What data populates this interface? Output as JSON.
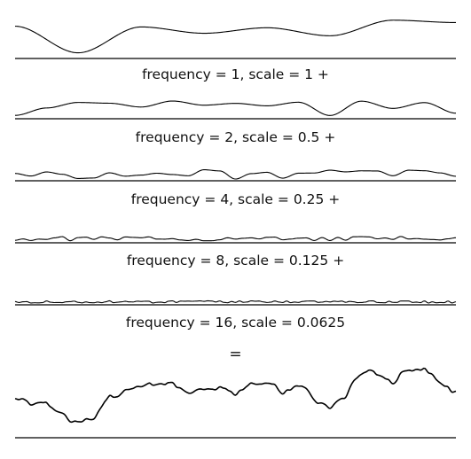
{
  "octaves": [
    {
      "label": "frequency = 1, scale = 1 +",
      "frequency": 1,
      "scale": 1
    },
    {
      "label": "frequency = 2, scale = 0.5 +",
      "frequency": 2,
      "scale": 0.5
    },
    {
      "label": "frequency = 4, scale = 0.25 +",
      "frequency": 4,
      "scale": 0.25
    },
    {
      "label": "frequency = 8, scale = 0.125 +",
      "frequency": 8,
      "scale": 0.125
    },
    {
      "label": "frequency = 16, scale = 0.0625",
      "frequency": 16,
      "scale": 0.0625
    }
  ],
  "equals_sign": "=",
  "colors": {
    "line": "#000000",
    "background": "#ffffff"
  }
}
